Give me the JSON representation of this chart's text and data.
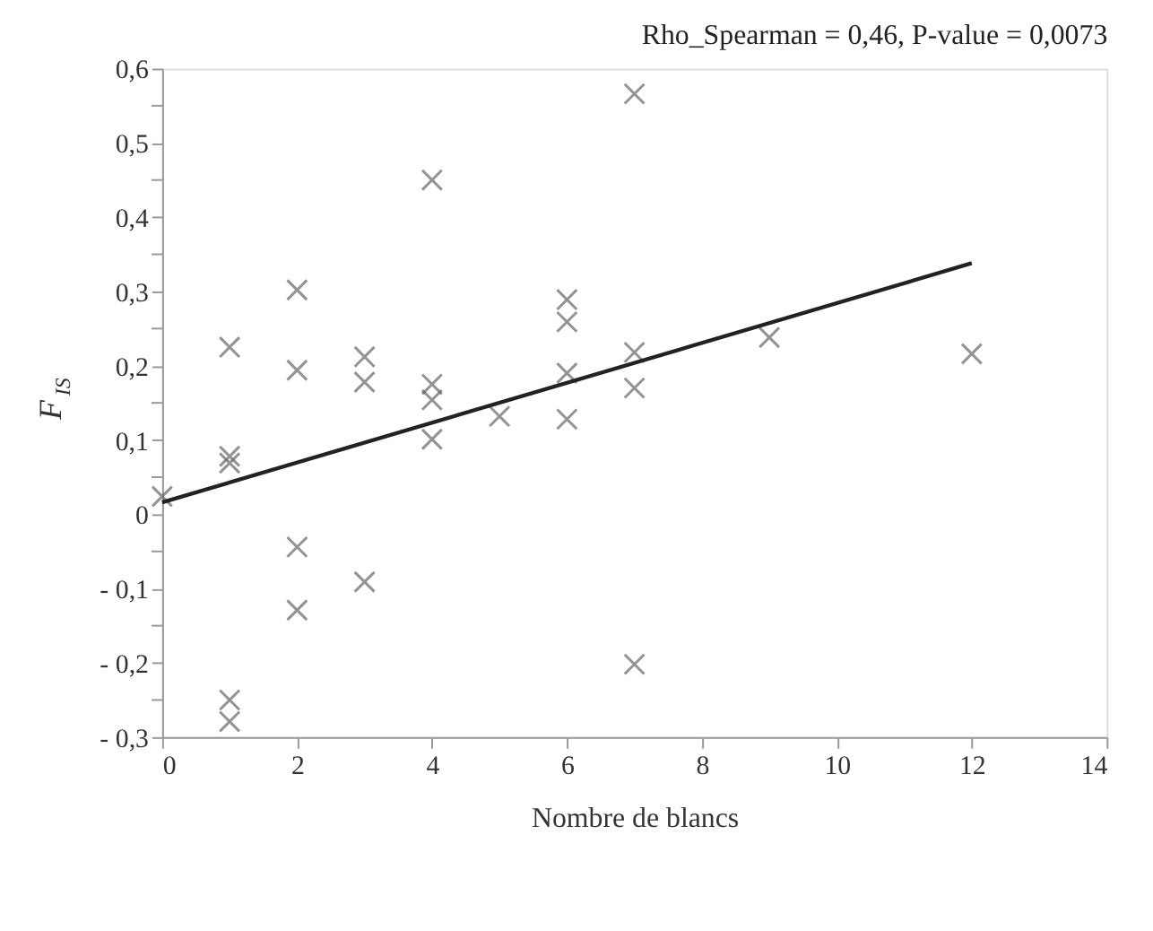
{
  "chart_data": {
    "type": "scatter",
    "title": "Rho_Spearman = 0,46, P-value = 0,0073",
    "xlabel": "Nombre de blancs",
    "ylabel": "F$_{IS}$",
    "marker": "cross",
    "grid": false,
    "xlim": [
      0,
      14
    ],
    "xticks": [
      0,
      2,
      4,
      6,
      8,
      10,
      12,
      14
    ],
    "ylim": [
      -0.3,
      0.6
    ],
    "yticks": [
      {
        "value": -0.3,
        "label": "- 0,3"
      },
      {
        "value": -0.25,
        "label": null
      },
      {
        "value": -0.2,
        "label": "- 0,2"
      },
      {
        "value": -0.15,
        "label": null
      },
      {
        "value": -0.1,
        "label": "- 0,1"
      },
      {
        "value": -0.05,
        "label": null
      },
      0,
      {
        "value": 0.05,
        "label": null
      },
      {
        "value": 0.1,
        "label": "0,1"
      },
      {
        "value": 0.15,
        "label": null
      },
      {
        "value": 0.2,
        "label": "0,2"
      },
      {
        "value": 0.25,
        "label": null
      },
      {
        "value": 0.3,
        "label": "0,3"
      },
      {
        "value": 0.35,
        "label": null
      },
      {
        "value": 0.4,
        "label": "0,4"
      },
      {
        "value": 0.45,
        "label": null
      },
      {
        "value": 0.5,
        "label": "0,5"
      },
      {
        "value": 0.55,
        "label": null
      },
      {
        "value": 0.6,
        "label": "0,6"
      }
    ],
    "series": [
      {
        "color": "#666666",
        "x": [
          0,
          1,
          1,
          1,
          1,
          1,
          2,
          2,
          2,
          2,
          3,
          3,
          3,
          4,
          4,
          4,
          4,
          5,
          6,
          6,
          6,
          6,
          7,
          7,
          7,
          7,
          9,
          12
        ],
        "values": [
          0.024,
          0.225,
          0.078,
          0.069,
          -0.25,
          -0.279,
          0.302,
          0.194,
          -0.044,
          -0.129,
          0.212,
          0.178,
          -0.091,
          0.45,
          0.175,
          0.154,
          0.101,
          0.132,
          0.289,
          0.259,
          0.19,
          0.128,
          0.566,
          0.218,
          0.17,
          -0.202,
          0.238,
          0.216
        ]
      },
      {
        "type": "line",
        "marker": "none",
        "line_style": "solid",
        "color": "#222222",
        "x": [
          0,
          12
        ],
        "values": [
          0.016,
          0.338
        ]
      }
    ]
  }
}
